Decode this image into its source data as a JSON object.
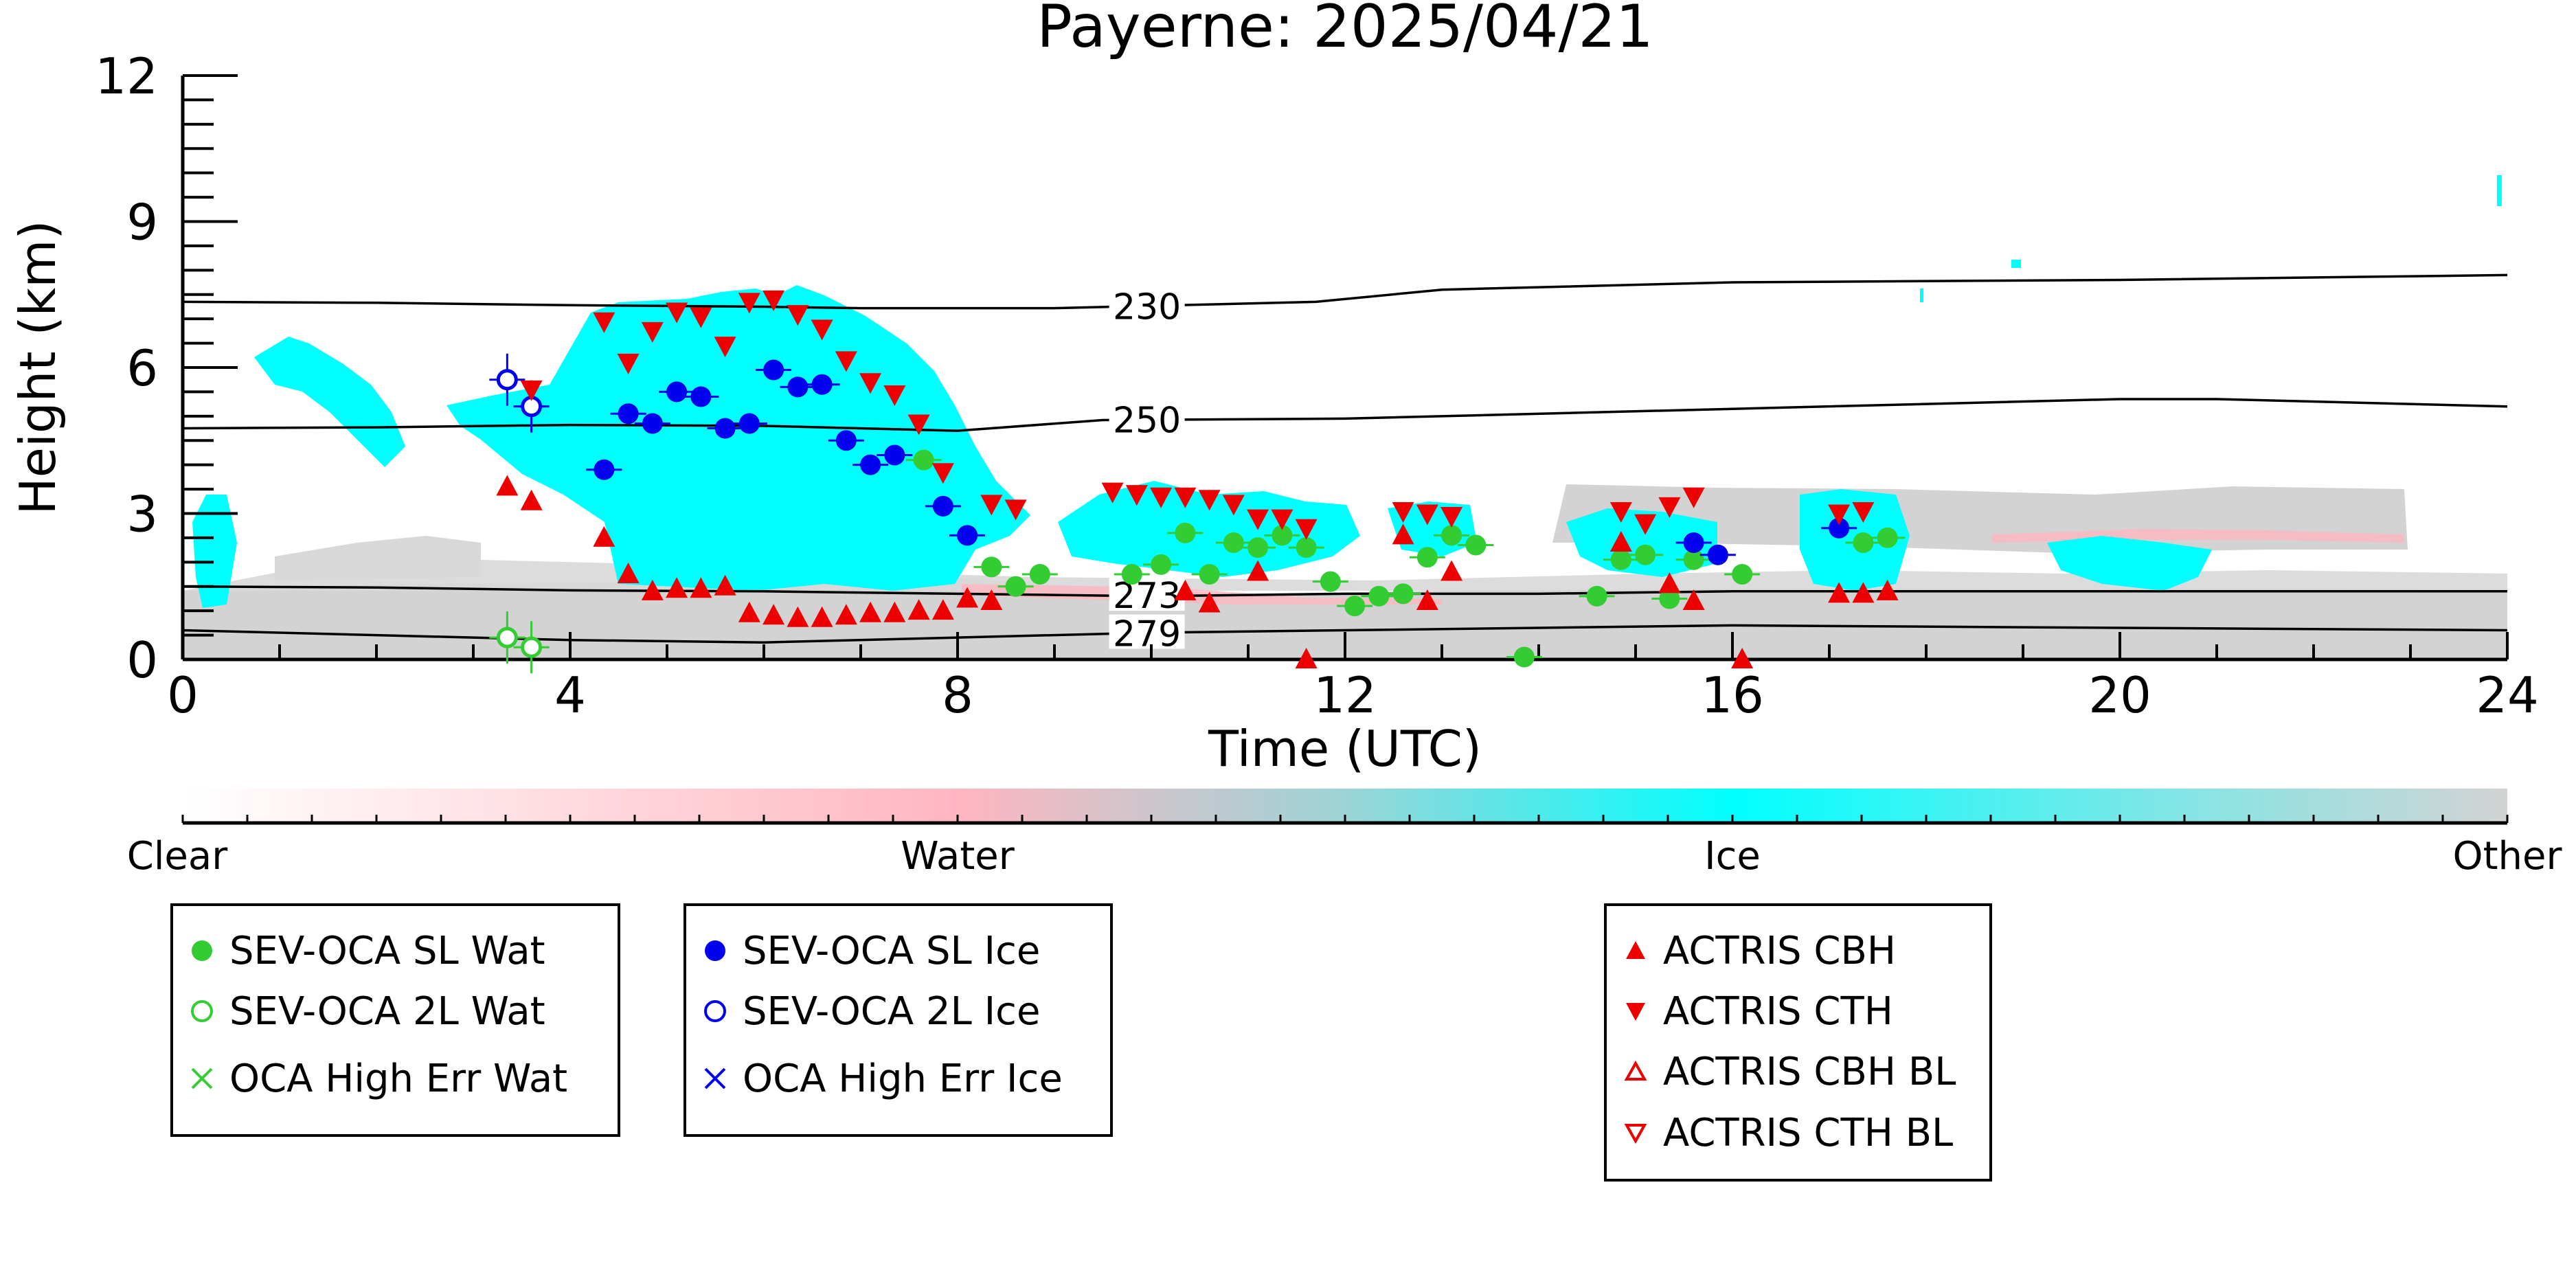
{
  "chart_data": {
    "type": "scatter",
    "title": "Payerne: 2025/04/21",
    "xlabel": "Time (UTC)",
    "ylabel": "Height (km)",
    "xlim": [
      0,
      24
    ],
    "ylim": [
      0,
      12
    ],
    "x_ticks": [
      "0",
      "4",
      "8",
      "12",
      "16",
      "20",
      "24"
    ],
    "y_ticks": [
      "0",
      "3",
      "6",
      "9",
      "12"
    ],
    "background": "Cloudnet-style classification: ice cloud (cyan) mostly 0-8 UTC between 1.5 and 7.5 km, scattered ice/liquid 9.5-18 UTC between 1.5 and 3.5 km, low-level gray (other) below 1.5 km throughout",
    "colorbar": {
      "labels": [
        "Clear",
        "Water",
        "Ice",
        "Other"
      ],
      "colors": [
        "#ffffff",
        "#ffb6c1",
        "#00ffff",
        "#d3d3d3"
      ]
    },
    "isotherms": [
      {
        "label": "230",
        "x": [
          0,
          2,
          4,
          6,
          7,
          9,
          11.7,
          13,
          16,
          20,
          24
        ],
        "y": [
          7.35,
          7.33,
          7.28,
          7.25,
          7.22,
          7.22,
          7.35,
          7.6,
          7.75,
          7.8,
          7.9
        ]
      },
      {
        "label": "250",
        "x": [
          0,
          2,
          4,
          6,
          8,
          9.5,
          12,
          16,
          20,
          21,
          24
        ],
        "y": [
          4.75,
          4.77,
          4.82,
          4.8,
          4.7,
          4.92,
          4.95,
          5.15,
          5.35,
          5.35,
          5.2
        ]
      },
      {
        "label": "273",
        "x": [
          0,
          2,
          4,
          6,
          8,
          10,
          12,
          14,
          16,
          20,
          24
        ],
        "y": [
          1.5,
          1.48,
          1.42,
          1.4,
          1.35,
          1.3,
          1.35,
          1.35,
          1.4,
          1.4,
          1.4
        ]
      },
      {
        "label": "279",
        "x": [
          0,
          2,
          4,
          6,
          8,
          10,
          12,
          14,
          16,
          20,
          24
        ],
        "y": [
          0.6,
          0.5,
          0.4,
          0.35,
          0.45,
          0.55,
          0.6,
          0.65,
          0.7,
          0.65,
          0.6
        ]
      }
    ],
    "series": [
      {
        "name": "SEV-OCA SL Wat",
        "color": "#33cc33",
        "marker": "filled-circle",
        "points": [
          [
            7.65,
            4.1
          ],
          [
            8.35,
            1.9
          ],
          [
            8.6,
            1.5
          ],
          [
            8.85,
            1.75
          ],
          [
            9.8,
            1.75
          ],
          [
            10.1,
            1.95
          ],
          [
            10.35,
            2.6
          ],
          [
            10.6,
            1.75
          ],
          [
            10.85,
            2.4
          ],
          [
            11.1,
            2.3
          ],
          [
            11.35,
            2.55
          ],
          [
            11.6,
            2.3
          ],
          [
            11.85,
            1.6
          ],
          [
            12.1,
            1.1
          ],
          [
            12.35,
            1.3
          ],
          [
            12.6,
            1.35
          ],
          [
            12.85,
            2.1
          ],
          [
            13.1,
            2.55
          ],
          [
            13.35,
            2.35
          ],
          [
            13.85,
            0.05
          ],
          [
            14.6,
            1.3
          ],
          [
            14.85,
            2.05
          ],
          [
            15.1,
            2.15
          ],
          [
            15.35,
            1.25
          ],
          [
            15.6,
            2.05
          ],
          [
            16.1,
            1.75
          ],
          [
            17.35,
            2.4
          ],
          [
            17.6,
            2.5
          ]
        ]
      },
      {
        "name": "SEV-OCA 2L Wat",
        "color": "#33cc33",
        "marker": "open-circle",
        "points": [
          [
            3.35,
            0.45
          ],
          [
            3.6,
            0.25
          ]
        ]
      },
      {
        "name": "SEV-OCA SL Ice",
        "color": "#0000ee",
        "marker": "filled-circle",
        "points": [
          [
            4.35,
            3.9
          ],
          [
            4.6,
            5.05
          ],
          [
            4.85,
            4.85
          ],
          [
            5.1,
            5.5
          ],
          [
            5.35,
            5.4
          ],
          [
            5.6,
            4.75
          ],
          [
            5.85,
            4.85
          ],
          [
            6.1,
            5.95
          ],
          [
            6.35,
            5.6
          ],
          [
            6.6,
            5.65
          ],
          [
            6.85,
            4.5
          ],
          [
            7.1,
            4.0
          ],
          [
            7.35,
            4.2
          ],
          [
            7.85,
            3.15
          ],
          [
            8.1,
            2.55
          ],
          [
            15.6,
            2.4
          ],
          [
            15.85,
            2.15
          ],
          [
            17.1,
            2.7
          ]
        ]
      },
      {
        "name": "SEV-OCA 2L Ice",
        "color": "#0000ee",
        "marker": "open-circle",
        "points": [
          [
            3.35,
            5.75
          ],
          [
            3.6,
            5.2
          ]
        ]
      },
      {
        "name": "ACTRIS CBH",
        "color": "#ee0000",
        "marker": "triangle-up",
        "points": [
          [
            3.35,
            3.55
          ],
          [
            3.6,
            3.25
          ],
          [
            4.35,
            2.5
          ],
          [
            4.6,
            1.75
          ],
          [
            4.85,
            1.4
          ],
          [
            5.1,
            1.45
          ],
          [
            5.35,
            1.45
          ],
          [
            5.6,
            1.5
          ],
          [
            5.85,
            0.95
          ],
          [
            6.1,
            0.9
          ],
          [
            6.35,
            0.85
          ],
          [
            6.6,
            0.85
          ],
          [
            6.85,
            0.9
          ],
          [
            7.1,
            0.95
          ],
          [
            7.35,
            0.95
          ],
          [
            7.6,
            1.0
          ],
          [
            7.85,
            1.0
          ],
          [
            8.1,
            1.25
          ],
          [
            8.35,
            1.2
          ],
          [
            10.35,
            1.4
          ],
          [
            10.6,
            1.15
          ],
          [
            11.1,
            1.8
          ],
          [
            11.6,
            0.0
          ],
          [
            12.6,
            2.55
          ],
          [
            12.85,
            1.2
          ],
          [
            13.1,
            1.8
          ],
          [
            14.85,
            2.4
          ],
          [
            15.35,
            1.55
          ],
          [
            15.6,
            1.2
          ],
          [
            16.1,
            0.0
          ],
          [
            17.1,
            1.35
          ],
          [
            17.35,
            1.35
          ],
          [
            17.6,
            1.4
          ]
        ]
      },
      {
        "name": "ACTRIS CTH",
        "color": "#ee0000",
        "marker": "triangle-down",
        "points": [
          [
            3.6,
            5.55
          ],
          [
            4.35,
            6.95
          ],
          [
            4.6,
            6.1
          ],
          [
            4.85,
            6.75
          ],
          [
            5.1,
            7.15
          ],
          [
            5.35,
            7.05
          ],
          [
            5.6,
            6.45
          ],
          [
            5.85,
            7.35
          ],
          [
            6.1,
            7.4
          ],
          [
            6.35,
            7.1
          ],
          [
            6.6,
            6.8
          ],
          [
            6.85,
            6.15
          ],
          [
            7.1,
            5.7
          ],
          [
            7.35,
            5.45
          ],
          [
            7.6,
            4.85
          ],
          [
            7.85,
            3.85
          ],
          [
            8.35,
            3.2
          ],
          [
            8.6,
            3.1
          ],
          [
            9.6,
            3.45
          ],
          [
            9.85,
            3.4
          ],
          [
            10.1,
            3.35
          ],
          [
            10.35,
            3.35
          ],
          [
            10.6,
            3.3
          ],
          [
            10.85,
            3.2
          ],
          [
            11.1,
            2.9
          ],
          [
            11.35,
            2.9
          ],
          [
            11.6,
            2.7
          ],
          [
            12.6,
            3.05
          ],
          [
            12.85,
            3.0
          ],
          [
            13.1,
            2.95
          ],
          [
            14.85,
            3.05
          ],
          [
            15.1,
            2.8
          ],
          [
            15.35,
            3.15
          ],
          [
            15.6,
            3.35
          ],
          [
            17.1,
            3.0
          ],
          [
            17.35,
            3.05
          ]
        ]
      }
    ]
  },
  "legends": [
    {
      "items": [
        "SEV-OCA SL Wat",
        "SEV-OCA 2L Wat",
        "OCA High Err Wat"
      ]
    },
    {
      "items": [
        "SEV-OCA SL Ice",
        "SEV-OCA 2L Ice",
        "OCA High Err Ice"
      ]
    },
    {
      "items": [
        "ACTRIS CBH",
        "ACTRIS CTH",
        "ACTRIS CBH BL",
        "ACTRIS CTH BL"
      ]
    }
  ]
}
